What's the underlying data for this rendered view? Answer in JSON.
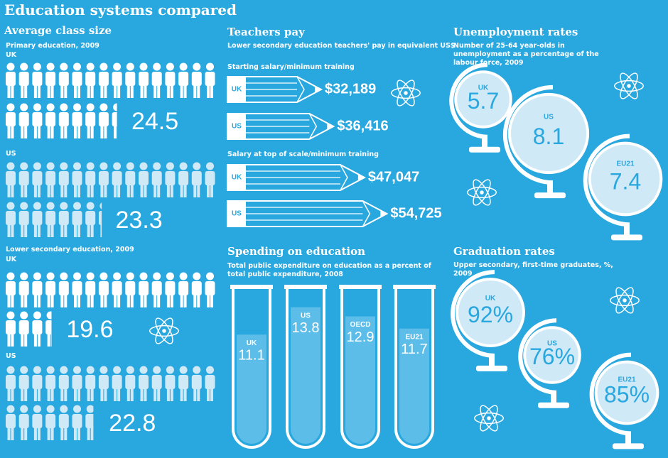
{
  "title": "Education systems compared",
  "class_size": {
    "title": "Average class size",
    "groups": [
      {
        "subtitle": "Primary education, 2009",
        "rows": [
          {
            "label": "UK",
            "value": 24.5
          },
          {
            "label": "US",
            "value": 23.3
          }
        ]
      },
      {
        "subtitle": "Lower secondary education, 2009",
        "rows": [
          {
            "label": "UK",
            "value": 19.6
          },
          {
            "label": "US",
            "value": 22.8
          }
        ]
      }
    ]
  },
  "teachers_pay": {
    "title": "Teachers pay",
    "subtitle": "Lower secondary education teachers' pay in equivalent US$",
    "groups": [
      {
        "subtitle": "Starting salary/minimum training",
        "rows": [
          {
            "label": "UK",
            "value": 32189,
            "value_label": "$32,189"
          },
          {
            "label": "US",
            "value": 36416,
            "value_label": "$36,416"
          }
        ]
      },
      {
        "subtitle": "Salary at top of scale/minimum training",
        "rows": [
          {
            "label": "UK",
            "value": 47047,
            "value_label": "$47,047"
          },
          {
            "label": "US",
            "value": 54725,
            "value_label": "$54,725"
          }
        ]
      }
    ]
  },
  "spending": {
    "title": "Spending on education",
    "subtitle": "Total public expenditure on education as a percent of total public expenditure, 2008",
    "items": [
      {
        "label": "UK",
        "value": 11.1
      },
      {
        "label": "US",
        "value": 13.8
      },
      {
        "label": "OECD",
        "value": 12.9
      },
      {
        "label": "EU21",
        "value": 11.7
      }
    ]
  },
  "unemployment": {
    "title": "Unemployment rates",
    "subtitle": "Number of 25-64 year-olds in unemployment as a percentage of the labour force, 2009",
    "items": [
      {
        "label": "UK",
        "value": 5.7
      },
      {
        "label": "US",
        "value": 8.1
      },
      {
        "label": "EU21",
        "value": 7.4
      }
    ]
  },
  "graduation": {
    "title": "Graduation rates",
    "subtitle": "Upper secondary, first-time graduates, %, 2009",
    "items": [
      {
        "label": "UK",
        "value": 92,
        "value_label": "92%"
      },
      {
        "label": "US",
        "value": 76,
        "value_label": "76%"
      },
      {
        "label": "EU21",
        "value": 85,
        "value_label": "85%"
      }
    ]
  }
}
